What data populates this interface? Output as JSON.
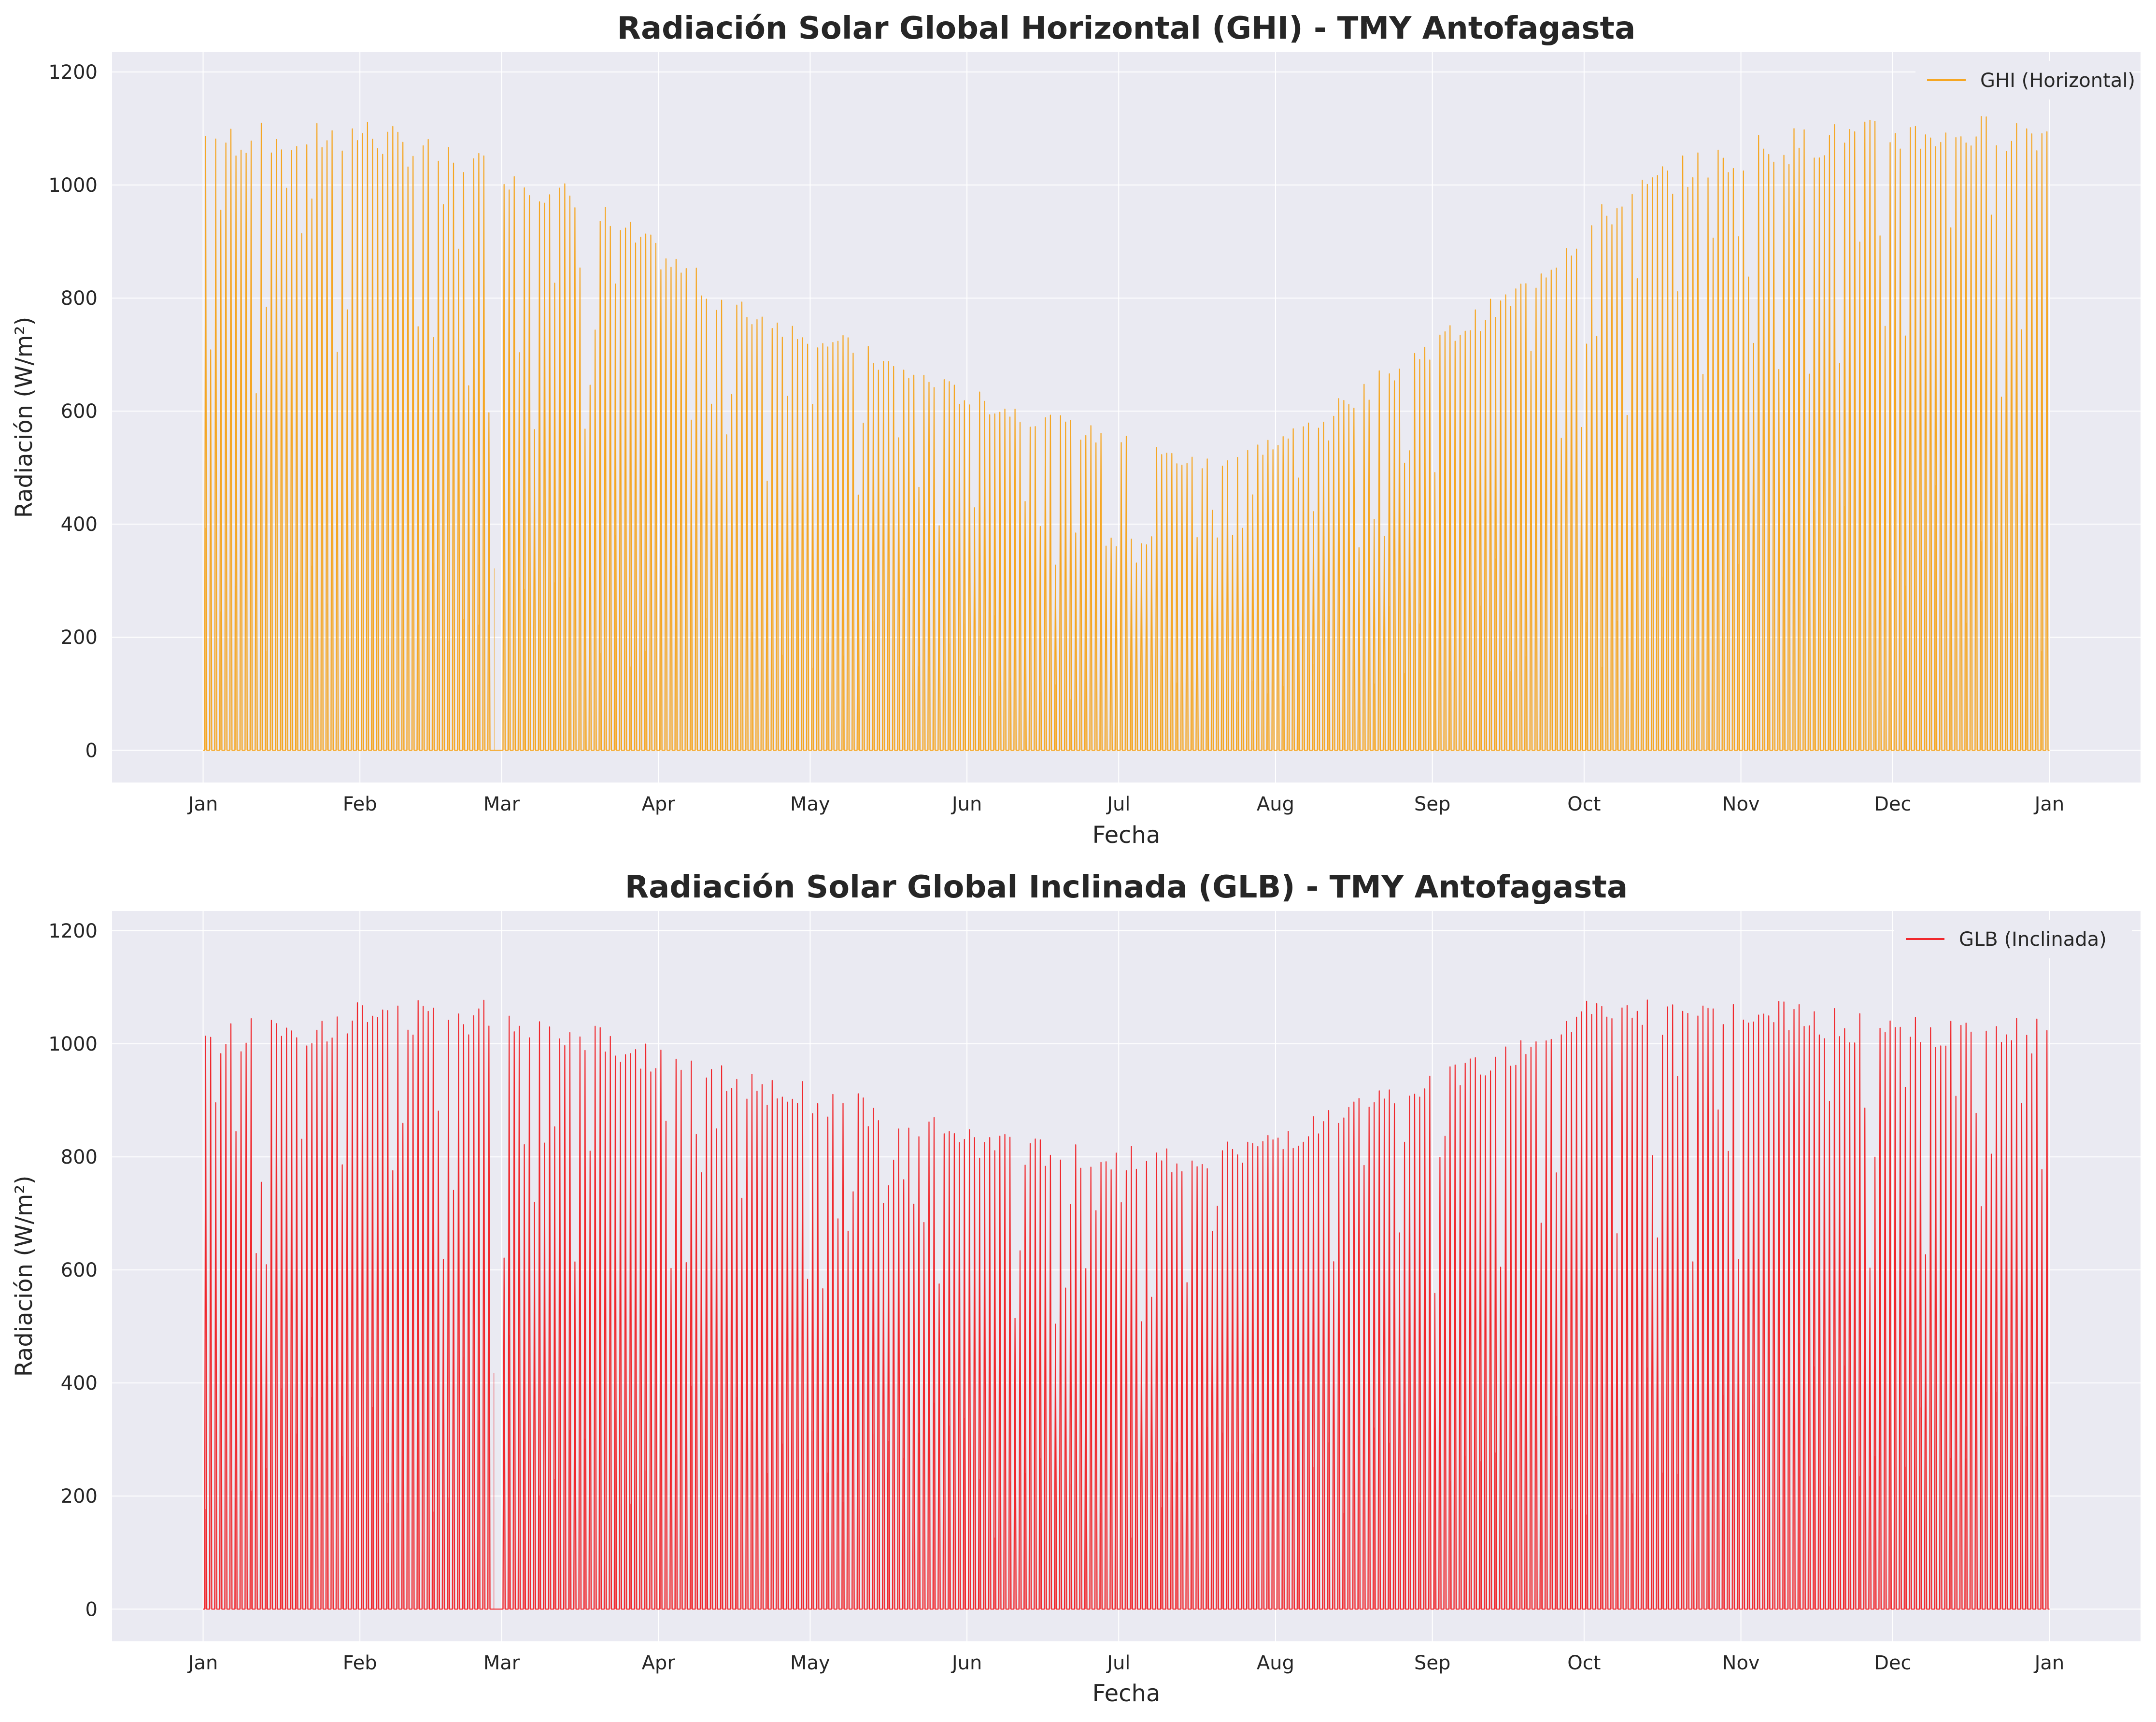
{
  "colors": {
    "plot_bg": "#eaeaf2",
    "grid": "#ffffff",
    "ghi": "#f5a623",
    "glb": "#f0282d"
  },
  "chart_data": [
    {
      "type": "line",
      "title": "Radiación Solar Global Horizontal (GHI) - TMY Antofagasta",
      "xlabel": "Fecha",
      "ylabel": "Radiación (W/m²)",
      "x_ticks": [
        "Jan",
        "Feb",
        "Mar",
        "Apr",
        "May",
        "Jun",
        "Jul",
        "Aug",
        "Sep",
        "Oct",
        "Nov",
        "Dec",
        "Jan"
      ],
      "x_tick_days": [
        0,
        31,
        59,
        90,
        120,
        151,
        181,
        212,
        243,
        273,
        304,
        334,
        365
      ],
      "xlim_days": [
        -18,
        383
      ],
      "y_ticks": [
        0,
        200,
        400,
        600,
        800,
        1000,
        1200
      ],
      "ylim": [
        -57,
        1235
      ],
      "grid": true,
      "legend_position": "top-right",
      "series": [
        {
          "name": "GHI (Horizontal)",
          "x_unit": "day of year (hourly resolution)",
          "daily_peak_points_doy": [
            0,
            15,
            31,
            45,
            59,
            75,
            90,
            105,
            120,
            135,
            151,
            166,
            181,
            196,
            212,
            227,
            243,
            258,
            273,
            288,
            304,
            319,
            334,
            349,
            364
          ],
          "daily_peak_values": [
            1115,
            1110,
            1125,
            1080,
            1055,
            990,
            900,
            800,
            760,
            700,
            640,
            600,
            560,
            520,
            560,
            640,
            740,
            820,
            950,
            1040,
            1090,
            1110,
            1120,
            1125,
            1125
          ]
        }
      ]
    },
    {
      "type": "line",
      "title": "Radiación Solar Global Inclinada (GLB) - TMY Antofagasta",
      "xlabel": "Fecha",
      "ylabel": "Radiación (W/m²)",
      "x_ticks": [
        "Jan",
        "Feb",
        "Mar",
        "Apr",
        "May",
        "Jun",
        "Jul",
        "Aug",
        "Sep",
        "Oct",
        "Nov",
        "Dec",
        "Jan"
      ],
      "x_tick_days": [
        0,
        31,
        59,
        90,
        120,
        151,
        181,
        212,
        243,
        273,
        304,
        334,
        365
      ],
      "xlim_days": [
        -18,
        383
      ],
      "y_ticks": [
        0,
        200,
        400,
        600,
        800,
        1000,
        1200
      ],
      "ylim": [
        -57,
        1235
      ],
      "grid": true,
      "legend_position": "top-right",
      "series": [
        {
          "name": "GLB (Inclinada)",
          "x_unit": "day of year (hourly resolution)",
          "daily_peak_points_doy": [
            0,
            15,
            31,
            45,
            59,
            75,
            90,
            105,
            120,
            135,
            151,
            166,
            181,
            196,
            212,
            227,
            243,
            258,
            273,
            288,
            304,
            319,
            334,
            349,
            364
          ],
          "daily_peak_values": [
            1040,
            1050,
            1080,
            1080,
            1080,
            1050,
            1000,
            960,
            930,
            900,
            850,
            830,
            820,
            820,
            850,
            900,
            960,
            1010,
            1080,
            1080,
            1080,
            1070,
            1050,
            1045,
            1045
          ]
        }
      ]
    }
  ]
}
